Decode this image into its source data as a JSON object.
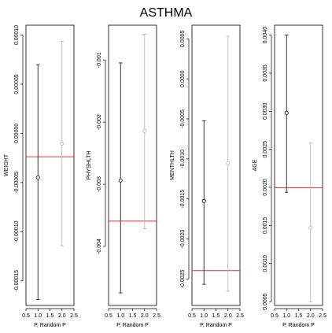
{
  "figure": {
    "title": "ASTHMA"
  },
  "chart_data": [
    {
      "type": "scatter",
      "ylabel": "WEIGHT",
      "xlabel": "P, Random P",
      "xlim": [
        0.5,
        2.5
      ],
      "x_ticks": [
        0.5,
        1.0,
        1.5,
        2.0,
        2.5
      ],
      "x_tick_labels": [
        "0.5",
        "1.0",
        "1.5",
        "2.0",
        "2.5"
      ],
      "ylim": [
        -0.000175,
        0.00011
      ],
      "y_ticks": [
        -0.00015,
        -0.0001,
        -5e-05,
        0.0,
        5e-05,
        0.0001
      ],
      "y_tick_labels": [
        "-0.00015",
        "-0.00010",
        "-0.00005",
        "0.00000",
        "0.00005",
        "0.00010"
      ],
      "series": [
        {
          "x": 1,
          "y": -4.48e-05,
          "lower": -0.000169,
          "upper": 6.99e-05,
          "color": "#222222"
        },
        {
          "x": 2,
          "y": -1.04e-05,
          "lower": -0.0001143,
          "upper": 9.35e-05,
          "color": "#bbbbbb"
        }
      ],
      "reference_line": {
        "y": -2.38e-05,
        "color": "#e03030"
      }
    },
    {
      "type": "scatter",
      "ylabel": "PHYSHLTH",
      "xlabel": "P, Random P",
      "xlim": [
        0.5,
        2.5
      ],
      "x_ticks": [
        0.5,
        1.0,
        1.5,
        2.0,
        2.5
      ],
      "x_tick_labels": [
        "0.5",
        "1.0",
        "1.5",
        "2.0",
        "2.5"
      ],
      "ylim": [
        -0.00495,
        -0.00044
      ],
      "y_ticks": [
        -0.004,
        -0.003,
        -0.002,
        -0.001
      ],
      "y_tick_labels": [
        "-0.004",
        "-0.003",
        "-0.002",
        "-0.001"
      ],
      "series": [
        {
          "x": 1,
          "y": -0.002939,
          "lower": -0.004748,
          "upper": -0.001047,
          "color": "#222222"
        },
        {
          "x": 2,
          "y": -0.002142,
          "lower": -0.003716,
          "upper": -0.000584,
          "color": "#bbbbbb"
        }
      ],
      "reference_line": {
        "y": -0.003593,
        "color": "#e03030"
      }
    },
    {
      "type": "scatter",
      "ylabel": "MENTHLTH",
      "xlabel": "P, Random P",
      "xlim": [
        0.5,
        2.5
      ],
      "x_ticks": [
        0.5,
        1.0,
        1.5,
        2.0,
        2.5
      ],
      "x_tick_labels": [
        "0.5",
        "1.0",
        "1.5",
        "2.0",
        "2.5"
      ],
      "ylim": [
        -0.00283,
        0.00067
      ],
      "y_ticks": [
        -0.0025,
        -0.002,
        -0.0015,
        -0.001,
        -0.0005,
        0.0,
        0.0005
      ],
      "y_tick_labels": [
        "-0.0025",
        "-0.0020",
        "-0.0015",
        "-0.0010",
        "-0.0005",
        "0.0000",
        "0.0005"
      ],
      "series": [
        {
          "x": 1,
          "y": -0.001526,
          "lower": -0.002566,
          "upper": -0.000523,
          "color": "#222222"
        },
        {
          "x": 2,
          "y": -0.001053,
          "lower": -0.002654,
          "upper": 0.000531,
          "color": "#bbbbbb"
        }
      ],
      "reference_line": {
        "y": -0.002395,
        "color": "#e03030"
      }
    },
    {
      "type": "scatter",
      "ylabel": "AGE",
      "xlabel": "P, Random P",
      "xlim": [
        0.5,
        2.5
      ],
      "x_ticks": [
        0.5,
        1.0,
        1.5,
        2.0,
        2.5
      ],
      "x_tick_labels": [
        "0.5",
        "1.0",
        "1.5",
        "2.0",
        "2.5"
      ],
      "ylim": [
        0.00045,
        0.00413
      ],
      "y_ticks": [
        0.0005,
        0.001,
        0.0015,
        0.002,
        0.0025,
        0.003,
        0.0035,
        0.004
      ],
      "y_tick_labels": [
        "0.0005",
        "0.0010",
        "0.0015",
        "0.0020",
        "0.0025",
        "0.0030",
        "0.0035",
        "0.0040"
      ],
      "series": [
        {
          "x": 1,
          "y": 0.002979,
          "lower": 0.001936,
          "upper": 0.004002,
          "color": "#222222"
        },
        {
          "x": 2,
          "y": 0.001469,
          "lower": 0.000499,
          "upper": 0.002587,
          "color": "#bbbbbb"
        }
      ],
      "reference_line": {
        "y": 0.001997,
        "color": "#e03030"
      }
    }
  ]
}
